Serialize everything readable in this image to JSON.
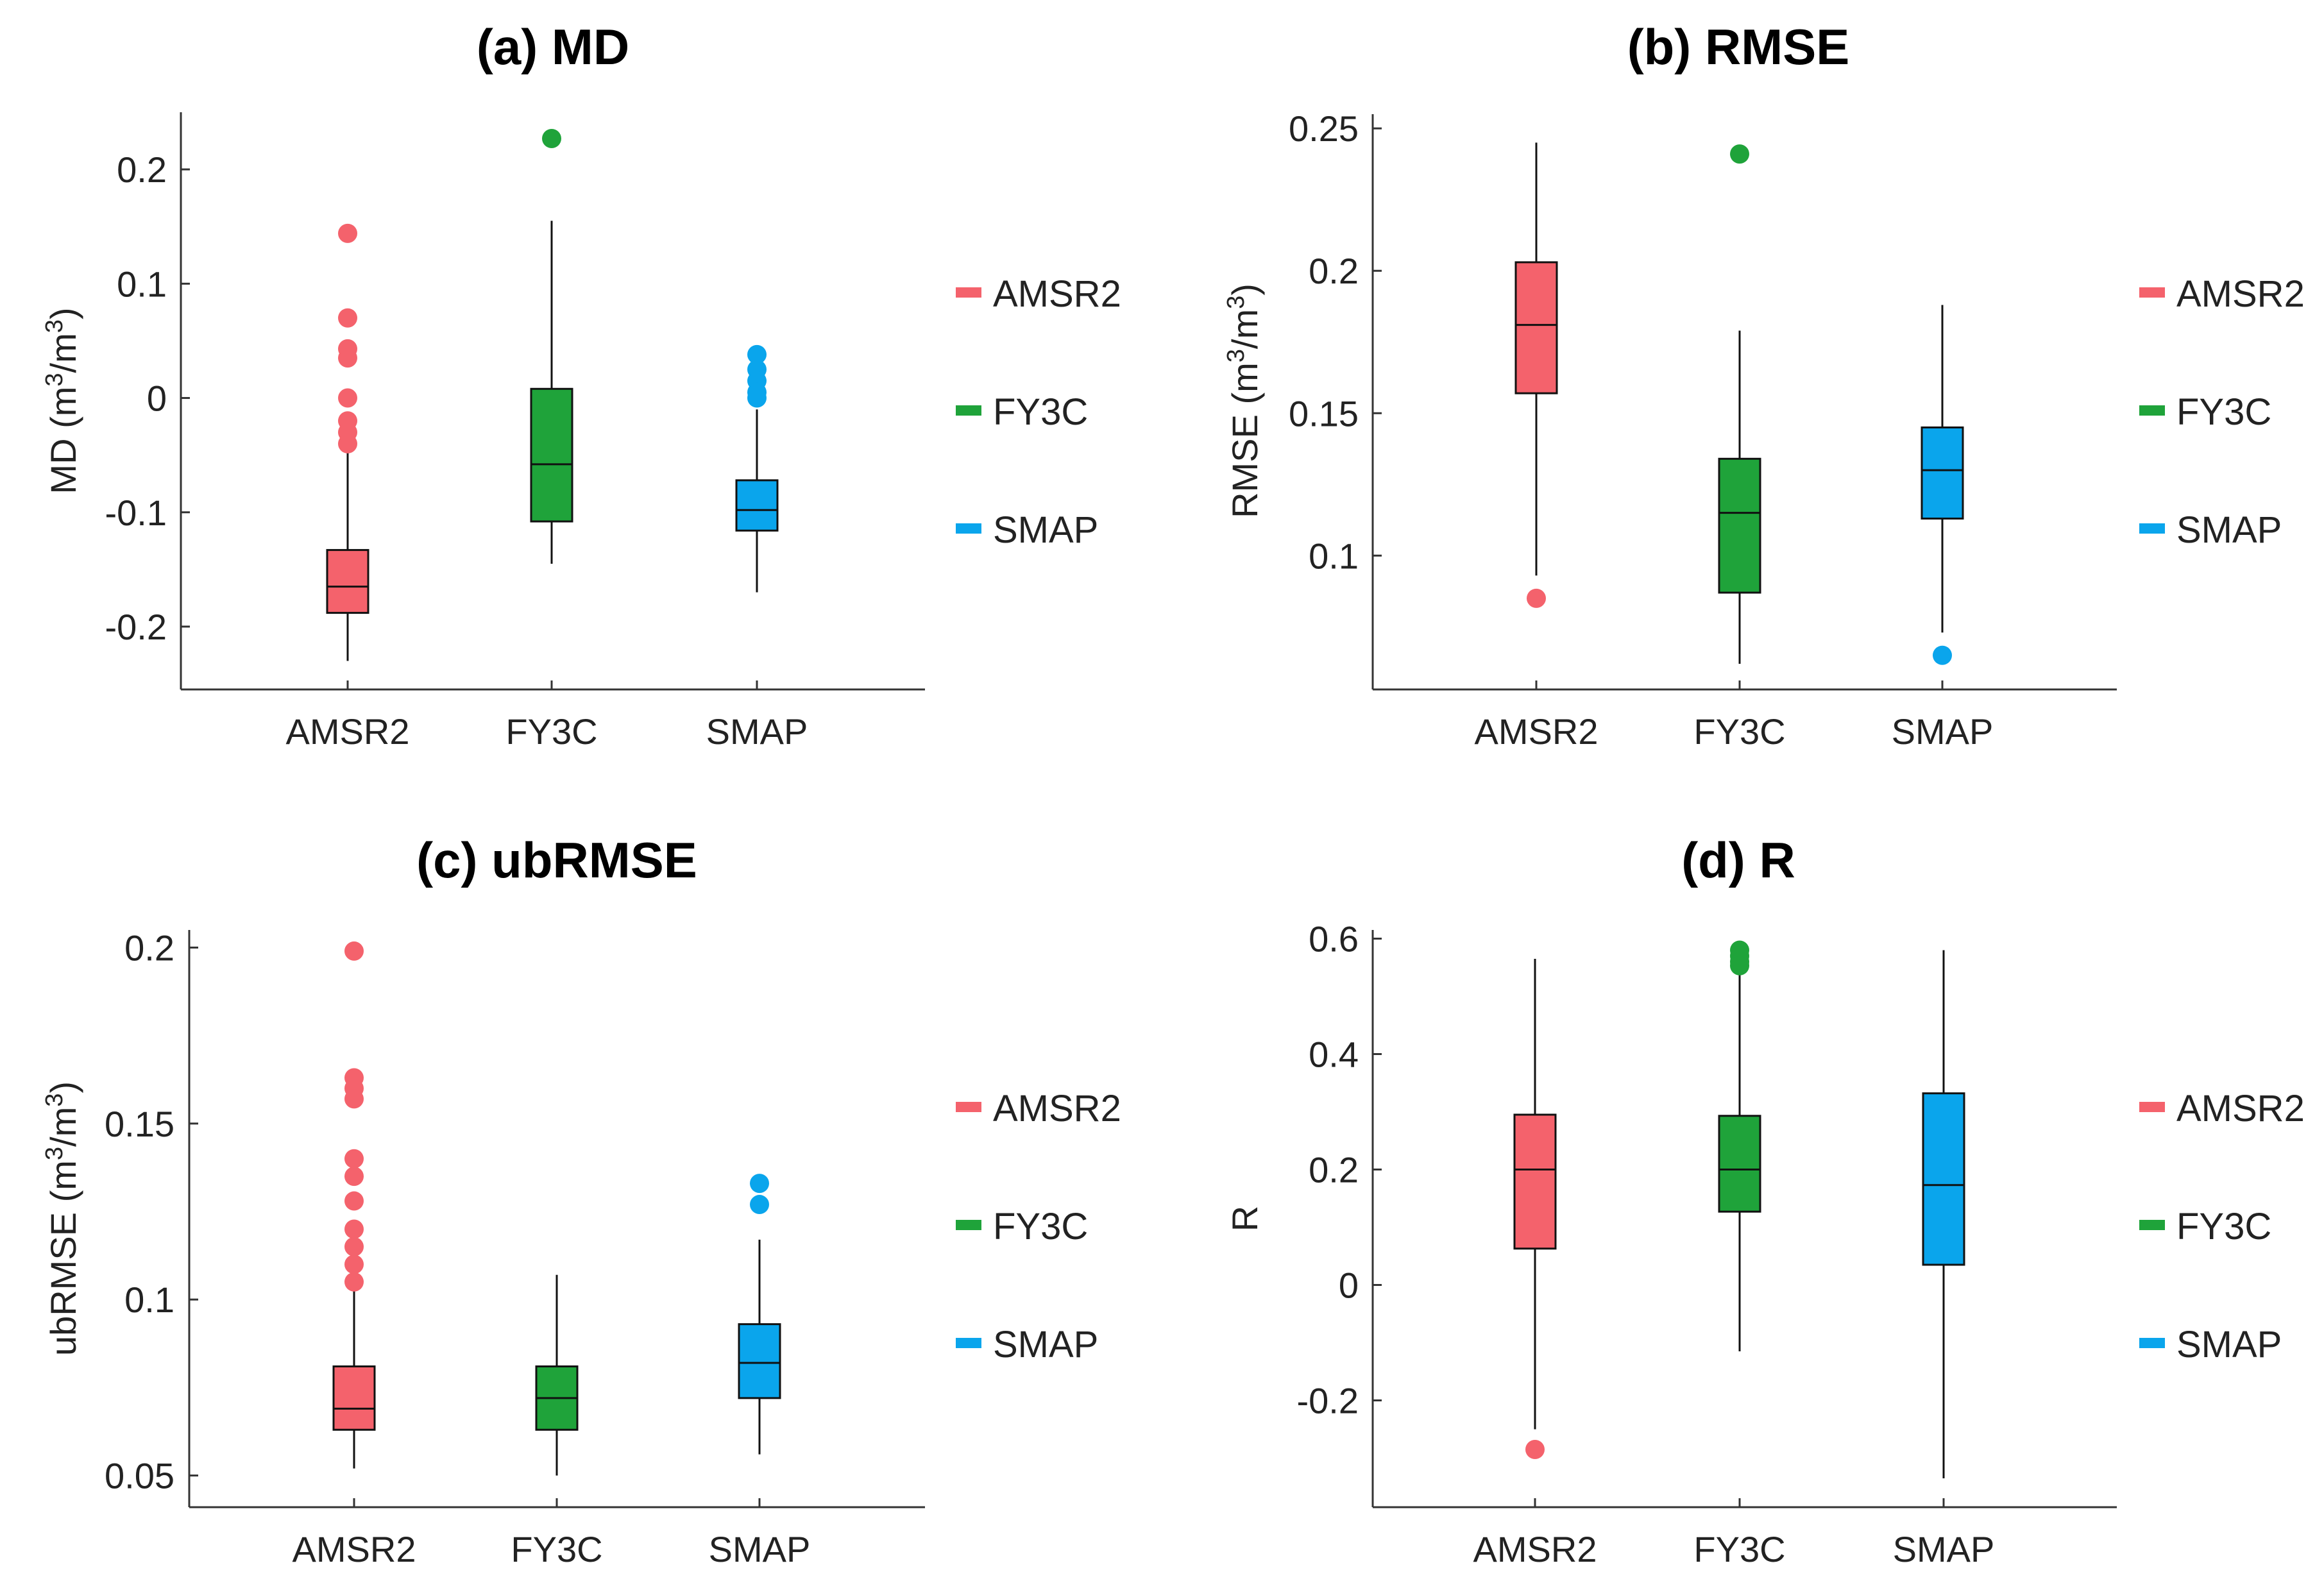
{
  "chart_data": [
    {
      "id": "a",
      "type": "box",
      "title": "(a) MD",
      "ylabel": "MD (m3/m3)",
      "ylabel_parts": {
        "base": "MD (m",
        "sup1": "3",
        "mid": "/m",
        "sup2": "3",
        "end": ")"
      },
      "ylim": [
        -0.255,
        0.25
      ],
      "yticks": [
        -0.2,
        -0.1,
        0,
        0.1,
        0.2
      ],
      "ytick_labels": [
        "-0.2",
        "-0.1",
        "0",
        "0.1",
        "0.2"
      ],
      "categories": [
        "AMSR2",
        "FY3C",
        "SMAP"
      ],
      "series": [
        {
          "name": "AMSR2",
          "color": "#f4626c",
          "whisker_low": -0.23,
          "q1": -0.188,
          "median": -0.165,
          "q3": -0.133,
          "whisker_high": -0.045,
          "outliers": [
            0.144,
            0.07,
            0.043,
            0.035,
            0.0,
            -0.02,
            -0.03,
            -0.04
          ]
        },
        {
          "name": "FY3C",
          "color": "#1fa33a",
          "whisker_low": -0.145,
          "q1": -0.108,
          "median": -0.058,
          "q3": 0.008,
          "whisker_high": 0.155,
          "outliers": [
            0.227
          ]
        },
        {
          "name": "SMAP",
          "color": "#0aa5ec",
          "whisker_low": -0.17,
          "q1": -0.116,
          "median": -0.098,
          "q3": -0.072,
          "whisker_high": -0.01,
          "outliers": [
            0.038,
            0.025,
            0.015,
            0.005,
            0.0
          ]
        }
      ]
    },
    {
      "id": "b",
      "type": "box",
      "title": "(b) RMSE",
      "ylabel": "RMSE (m3/m3)",
      "ylabel_parts": {
        "base": "RMSE (m",
        "sup1": "3",
        "mid": "/m",
        "sup2": "3",
        "end": ")"
      },
      "ylim": [
        0.053,
        0.255
      ],
      "yticks": [
        0.1,
        0.15,
        0.2,
        0.25
      ],
      "ytick_labels": [
        "0.1",
        "0.15",
        "0.2",
        "0.25"
      ],
      "categories": [
        "AMSR2",
        "FY3C",
        "SMAP"
      ],
      "series": [
        {
          "name": "AMSR2",
          "color": "#f4626c",
          "whisker_low": 0.093,
          "q1": 0.157,
          "median": 0.181,
          "q3": 0.203,
          "whisker_high": 0.245,
          "outliers": [
            0.085
          ]
        },
        {
          "name": "FY3C",
          "color": "#1fa33a",
          "whisker_low": 0.062,
          "q1": 0.087,
          "median": 0.115,
          "q3": 0.134,
          "whisker_high": 0.179,
          "outliers": [
            0.241
          ]
        },
        {
          "name": "SMAP",
          "color": "#0aa5ec",
          "whisker_low": 0.073,
          "q1": 0.113,
          "median": 0.13,
          "q3": 0.145,
          "whisker_high": 0.188,
          "outliers": [
            0.065
          ]
        }
      ]
    },
    {
      "id": "c",
      "type": "box",
      "title": "(c) ubRMSE",
      "ylabel": "ubRMSE (m3/m3)",
      "ylabel_parts": {
        "base": "ubRMSE (m",
        "sup1": "3",
        "mid": "/m",
        "sup2": "3",
        "end": ")"
      },
      "ylim": [
        0.041,
        0.205
      ],
      "yticks": [
        0.05,
        0.1,
        0.15,
        0.2
      ],
      "ytick_labels": [
        "0.05",
        "0.1",
        "0.15",
        "0.2"
      ],
      "categories": [
        "AMSR2",
        "FY3C",
        "SMAP"
      ],
      "series": [
        {
          "name": "AMSR2",
          "color": "#f4626c",
          "whisker_low": 0.052,
          "q1": 0.063,
          "median": 0.069,
          "q3": 0.081,
          "whisker_high": 0.104,
          "outliers": [
            0.199,
            0.163,
            0.16,
            0.157,
            0.14,
            0.135,
            0.128,
            0.12,
            0.115,
            0.11,
            0.105
          ]
        },
        {
          "name": "FY3C",
          "color": "#1fa33a",
          "whisker_low": 0.05,
          "q1": 0.063,
          "median": 0.072,
          "q3": 0.081,
          "whisker_high": 0.107,
          "outliers": []
        },
        {
          "name": "SMAP",
          "color": "#0aa5ec",
          "whisker_low": 0.056,
          "q1": 0.072,
          "median": 0.082,
          "q3": 0.093,
          "whisker_high": 0.117,
          "outliers": [
            0.133,
            0.127
          ]
        }
      ]
    },
    {
      "id": "d",
      "type": "box",
      "title": "(d) R",
      "ylabel": "R",
      "ylabel_parts": {
        "base": "R",
        "sup1": "",
        "mid": "",
        "sup2": "",
        "end": ""
      },
      "ylim": [
        -0.385,
        0.615
      ],
      "yticks": [
        -0.2,
        0,
        0.2,
        0.4,
        0.6
      ],
      "ytick_labels": [
        "-0.2",
        "0",
        "0.2",
        "0.4",
        "0.6"
      ],
      "categories": [
        "AMSR2",
        "FY3C",
        "SMAP"
      ],
      "series": [
        {
          "name": "AMSR2",
          "color": "#f4626c",
          "whisker_low": -0.25,
          "q1": 0.063,
          "median": 0.2,
          "q3": 0.295,
          "whisker_high": 0.565,
          "outliers": [
            -0.285
          ]
        },
        {
          "name": "FY3C",
          "color": "#1fa33a",
          "whisker_low": -0.115,
          "q1": 0.127,
          "median": 0.2,
          "q3": 0.293,
          "whisker_high": 0.54,
          "outliers": [
            0.58,
            0.57,
            0.56,
            0.553
          ]
        },
        {
          "name": "SMAP",
          "color": "#0aa5ec",
          "whisker_low": -0.335,
          "q1": 0.035,
          "median": 0.173,
          "q3": 0.332,
          "whisker_high": 0.58,
          "outliers": []
        }
      ]
    }
  ],
  "legend": {
    "placement": "right",
    "entries": [
      {
        "label": "AMSR2",
        "color": "#f4626c"
      },
      {
        "label": "FY3C",
        "color": "#1fa33a"
      },
      {
        "label": "SMAP",
        "color": "#0aa5ec"
      }
    ]
  }
}
